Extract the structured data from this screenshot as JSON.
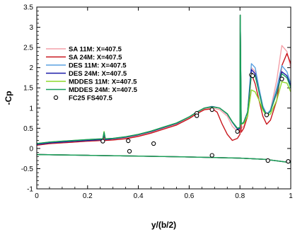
{
  "chart_data": {
    "type": "line",
    "xlabel": "y/(b/2)",
    "ylabel": "-Cp",
    "xlim": [
      0,
      1
    ],
    "ylim": [
      -1,
      3.5
    ],
    "x_ticks": [
      0,
      0.2,
      0.4,
      0.6,
      0.8,
      1
    ],
    "x_tick_labels": [
      "0",
      "0.2",
      "0.4",
      "0.6",
      "0.8",
      "1"
    ],
    "y_ticks": [
      -1,
      -0.5,
      0,
      0.5,
      1,
      1.5,
      2,
      2.5,
      3,
      3.5
    ],
    "y_tick_labels": [
      "-1",
      "-0.5",
      "0",
      "0.5",
      "1",
      "1.5",
      "2",
      "2.5",
      "3",
      "3.5"
    ],
    "legend_position": "top-left",
    "series": [
      {
        "name": "SA 11M: X=407.5",
        "color": "#f4a0a8",
        "upper": [
          [
            0,
            0.08
          ],
          [
            0.05,
            0.12
          ],
          [
            0.1,
            0.14
          ],
          [
            0.15,
            0.16
          ],
          [
            0.2,
            0.18
          ],
          [
            0.26,
            0.2
          ],
          [
            0.265,
            0.3
          ],
          [
            0.27,
            0.2
          ],
          [
            0.3,
            0.22
          ],
          [
            0.35,
            0.26
          ],
          [
            0.4,
            0.32
          ],
          [
            0.45,
            0.4
          ],
          [
            0.5,
            0.5
          ],
          [
            0.55,
            0.6
          ],
          [
            0.6,
            0.76
          ],
          [
            0.63,
            0.88
          ],
          [
            0.66,
            0.98
          ],
          [
            0.69,
            1.0
          ],
          [
            0.72,
            0.96
          ],
          [
            0.75,
            0.8
          ],
          [
            0.77,
            0.55
          ],
          [
            0.79,
            0.42
          ],
          [
            0.8,
            0.5
          ],
          [
            0.801,
            3.3
          ],
          [
            0.805,
            0.5
          ],
          [
            0.815,
            0.55
          ],
          [
            0.83,
            0.8
          ],
          [
            0.845,
            2.0
          ],
          [
            0.86,
            1.9
          ],
          [
            0.875,
            1.5
          ],
          [
            0.89,
            1.0
          ],
          [
            0.905,
            0.8
          ],
          [
            0.92,
            0.95
          ],
          [
            0.945,
            1.7
          ],
          [
            0.965,
            2.55
          ],
          [
            0.985,
            2.4
          ],
          [
            1.0,
            2.0
          ]
        ],
        "lower": [
          [
            0,
            -0.15
          ],
          [
            0.2,
            -0.17
          ],
          [
            0.4,
            -0.19
          ],
          [
            0.6,
            -0.21
          ],
          [
            0.8,
            -0.24
          ],
          [
            0.9,
            -0.27
          ],
          [
            1.0,
            -0.35
          ]
        ]
      },
      {
        "name": "SA 24M: X=407.5",
        "color": "#c8161d",
        "upper": [
          [
            0,
            0.08
          ],
          [
            0.05,
            0.12
          ],
          [
            0.1,
            0.14
          ],
          [
            0.15,
            0.16
          ],
          [
            0.2,
            0.18
          ],
          [
            0.26,
            0.2
          ],
          [
            0.265,
            0.28
          ],
          [
            0.27,
            0.2
          ],
          [
            0.3,
            0.21
          ],
          [
            0.35,
            0.24
          ],
          [
            0.4,
            0.3
          ],
          [
            0.45,
            0.38
          ],
          [
            0.5,
            0.48
          ],
          [
            0.55,
            0.58
          ],
          [
            0.6,
            0.74
          ],
          [
            0.63,
            0.86
          ],
          [
            0.66,
            0.96
          ],
          [
            0.69,
            0.98
          ],
          [
            0.71,
            0.9
          ],
          [
            0.73,
            0.6
          ],
          [
            0.75,
            0.35
          ],
          [
            0.77,
            0.2
          ],
          [
            0.79,
            0.25
          ],
          [
            0.8,
            0.35
          ],
          [
            0.801,
            3.3
          ],
          [
            0.805,
            0.4
          ],
          [
            0.815,
            0.5
          ],
          [
            0.83,
            0.8
          ],
          [
            0.845,
            1.85
          ],
          [
            0.86,
            1.6
          ],
          [
            0.875,
            1.2
          ],
          [
            0.89,
            0.8
          ],
          [
            0.905,
            0.6
          ],
          [
            0.92,
            0.7
          ],
          [
            0.945,
            1.2
          ],
          [
            0.965,
            2.05
          ],
          [
            0.985,
            2.35
          ],
          [
            1.0,
            2.1
          ]
        ],
        "lower": [
          [
            0,
            -0.15
          ],
          [
            0.2,
            -0.17
          ],
          [
            0.4,
            -0.19
          ],
          [
            0.6,
            -0.21
          ],
          [
            0.8,
            -0.24
          ],
          [
            0.9,
            -0.27
          ],
          [
            1.0,
            -0.35
          ]
        ]
      },
      {
        "name": "DES 11M: X=407.5",
        "color": "#5aa0e0",
        "upper": [
          [
            0,
            0.1
          ],
          [
            0.05,
            0.14
          ],
          [
            0.1,
            0.16
          ],
          [
            0.15,
            0.18
          ],
          [
            0.2,
            0.2
          ],
          [
            0.26,
            0.22
          ],
          [
            0.265,
            0.38
          ],
          [
            0.27,
            0.22
          ],
          [
            0.3,
            0.24
          ],
          [
            0.35,
            0.28
          ],
          [
            0.4,
            0.34
          ],
          [
            0.45,
            0.42
          ],
          [
            0.5,
            0.52
          ],
          [
            0.55,
            0.62
          ],
          [
            0.6,
            0.78
          ],
          [
            0.63,
            0.9
          ],
          [
            0.66,
            1.0
          ],
          [
            0.69,
            1.04
          ],
          [
            0.72,
            1.0
          ],
          [
            0.75,
            0.85
          ],
          [
            0.77,
            0.65
          ],
          [
            0.79,
            0.48
          ],
          [
            0.8,
            0.5
          ],
          [
            0.801,
            3.3
          ],
          [
            0.805,
            0.6
          ],
          [
            0.815,
            0.65
          ],
          [
            0.83,
            0.9
          ],
          [
            0.845,
            2.1
          ],
          [
            0.86,
            2.0
          ],
          [
            0.875,
            1.5
          ],
          [
            0.89,
            1.05
          ],
          [
            0.905,
            0.85
          ],
          [
            0.92,
            0.95
          ],
          [
            0.945,
            1.5
          ],
          [
            0.965,
            2.05
          ],
          [
            0.985,
            1.9
          ],
          [
            1.0,
            1.6
          ]
        ],
        "lower": [
          [
            0,
            -0.15
          ],
          [
            0.2,
            -0.17
          ],
          [
            0.4,
            -0.19
          ],
          [
            0.6,
            -0.21
          ],
          [
            0.8,
            -0.24
          ],
          [
            0.9,
            -0.27
          ],
          [
            1.0,
            -0.35
          ]
        ]
      },
      {
        "name": "DES 24M: X=407.5",
        "color": "#1a1aa8",
        "upper": [
          [
            0,
            0.1
          ],
          [
            0.05,
            0.14
          ],
          [
            0.1,
            0.16
          ],
          [
            0.15,
            0.18
          ],
          [
            0.2,
            0.2
          ],
          [
            0.26,
            0.22
          ],
          [
            0.265,
            0.36
          ],
          [
            0.27,
            0.22
          ],
          [
            0.3,
            0.24
          ],
          [
            0.35,
            0.28
          ],
          [
            0.4,
            0.34
          ],
          [
            0.45,
            0.42
          ],
          [
            0.5,
            0.52
          ],
          [
            0.55,
            0.62
          ],
          [
            0.6,
            0.78
          ],
          [
            0.63,
            0.9
          ],
          [
            0.66,
            1.0
          ],
          [
            0.69,
            1.04
          ],
          [
            0.72,
            1.0
          ],
          [
            0.75,
            0.85
          ],
          [
            0.77,
            0.65
          ],
          [
            0.79,
            0.48
          ],
          [
            0.8,
            0.5
          ],
          [
            0.801,
            3.3
          ],
          [
            0.805,
            0.6
          ],
          [
            0.815,
            0.65
          ],
          [
            0.83,
            0.9
          ],
          [
            0.845,
            1.95
          ],
          [
            0.86,
            1.85
          ],
          [
            0.875,
            1.4
          ],
          [
            0.89,
            1.0
          ],
          [
            0.905,
            0.82
          ],
          [
            0.92,
            0.92
          ],
          [
            0.945,
            1.4
          ],
          [
            0.965,
            1.9
          ],
          [
            0.985,
            1.8
          ],
          [
            1.0,
            1.55
          ]
        ],
        "lower": [
          [
            0,
            -0.15
          ],
          [
            0.2,
            -0.17
          ],
          [
            0.4,
            -0.19
          ],
          [
            0.6,
            -0.21
          ],
          [
            0.8,
            -0.24
          ],
          [
            0.9,
            -0.27
          ],
          [
            1.0,
            -0.35
          ]
        ]
      },
      {
        "name": "MDDES 11M: X=407.5",
        "color": "#8ed82c",
        "upper": [
          [
            0,
            0.12
          ],
          [
            0.05,
            0.16
          ],
          [
            0.1,
            0.18
          ],
          [
            0.15,
            0.2
          ],
          [
            0.2,
            0.22
          ],
          [
            0.26,
            0.24
          ],
          [
            0.265,
            0.42
          ],
          [
            0.27,
            0.24
          ],
          [
            0.3,
            0.25
          ],
          [
            0.35,
            0.29
          ],
          [
            0.4,
            0.35
          ],
          [
            0.45,
            0.43
          ],
          [
            0.5,
            0.53
          ],
          [
            0.55,
            0.63
          ],
          [
            0.6,
            0.78
          ],
          [
            0.63,
            0.9
          ],
          [
            0.66,
            1.0
          ],
          [
            0.69,
            1.03
          ],
          [
            0.72,
            1.0
          ],
          [
            0.75,
            0.86
          ],
          [
            0.77,
            0.66
          ],
          [
            0.79,
            0.5
          ],
          [
            0.8,
            0.52
          ],
          [
            0.801,
            3.3
          ],
          [
            0.805,
            0.6
          ],
          [
            0.815,
            0.62
          ],
          [
            0.83,
            0.8
          ],
          [
            0.845,
            1.45
          ],
          [
            0.86,
            1.4
          ],
          [
            0.875,
            1.2
          ],
          [
            0.89,
            0.95
          ],
          [
            0.905,
            0.8
          ],
          [
            0.92,
            0.85
          ],
          [
            0.945,
            1.2
          ],
          [
            0.965,
            1.65
          ],
          [
            0.985,
            1.62
          ],
          [
            1.0,
            1.4
          ]
        ],
        "lower": [
          [
            0,
            -0.15
          ],
          [
            0.2,
            -0.17
          ],
          [
            0.4,
            -0.19
          ],
          [
            0.6,
            -0.21
          ],
          [
            0.8,
            -0.24
          ],
          [
            0.9,
            -0.27
          ],
          [
            1.0,
            -0.35
          ]
        ]
      },
      {
        "name": "MDDES 24M: X=407.5",
        "color": "#169c5c",
        "upper": [
          [
            0,
            0.12
          ],
          [
            0.05,
            0.16
          ],
          [
            0.1,
            0.18
          ],
          [
            0.15,
            0.2
          ],
          [
            0.2,
            0.22
          ],
          [
            0.26,
            0.24
          ],
          [
            0.265,
            0.4
          ],
          [
            0.27,
            0.24
          ],
          [
            0.3,
            0.25
          ],
          [
            0.35,
            0.29
          ],
          [
            0.4,
            0.35
          ],
          [
            0.45,
            0.43
          ],
          [
            0.5,
            0.53
          ],
          [
            0.55,
            0.63
          ],
          [
            0.6,
            0.78
          ],
          [
            0.63,
            0.9
          ],
          [
            0.66,
            1.0
          ],
          [
            0.69,
            1.03
          ],
          [
            0.72,
            1.0
          ],
          [
            0.75,
            0.86
          ],
          [
            0.77,
            0.66
          ],
          [
            0.79,
            0.5
          ],
          [
            0.8,
            0.52
          ],
          [
            0.801,
            3.3
          ],
          [
            0.805,
            0.6
          ],
          [
            0.815,
            0.65
          ],
          [
            0.83,
            0.9
          ],
          [
            0.845,
            1.85
          ],
          [
            0.86,
            1.8
          ],
          [
            0.875,
            1.4
          ],
          [
            0.89,
            1.0
          ],
          [
            0.905,
            0.82
          ],
          [
            0.92,
            0.92
          ],
          [
            0.945,
            1.38
          ],
          [
            0.965,
            1.85
          ],
          [
            0.985,
            1.75
          ],
          [
            1.0,
            1.5
          ]
        ],
        "lower": [
          [
            0,
            -0.15
          ],
          [
            0.2,
            -0.17
          ],
          [
            0.4,
            -0.19
          ],
          [
            0.6,
            -0.21
          ],
          [
            0.8,
            -0.24
          ],
          [
            0.9,
            -0.27
          ],
          [
            1.0,
            -0.35
          ]
        ]
      }
    ],
    "experiment": {
      "name": "FC25 FS407.5",
      "points": [
        [
          0.26,
          0.18
        ],
        [
          0.36,
          0.19
        ],
        [
          0.365,
          -0.07
        ],
        [
          0.46,
          0.12
        ],
        [
          0.63,
          0.87
        ],
        [
          0.63,
          0.81
        ],
        [
          0.69,
          0.96
        ],
        [
          0.69,
          -0.17
        ],
        [
          0.79,
          0.42
        ],
        [
          0.845,
          1.82
        ],
        [
          0.85,
          1.8
        ],
        [
          0.905,
          0.83
        ],
        [
          0.91,
          -0.3
        ],
        [
          0.965,
          1.72
        ],
        [
          0.99,
          -0.32
        ]
      ]
    }
  }
}
